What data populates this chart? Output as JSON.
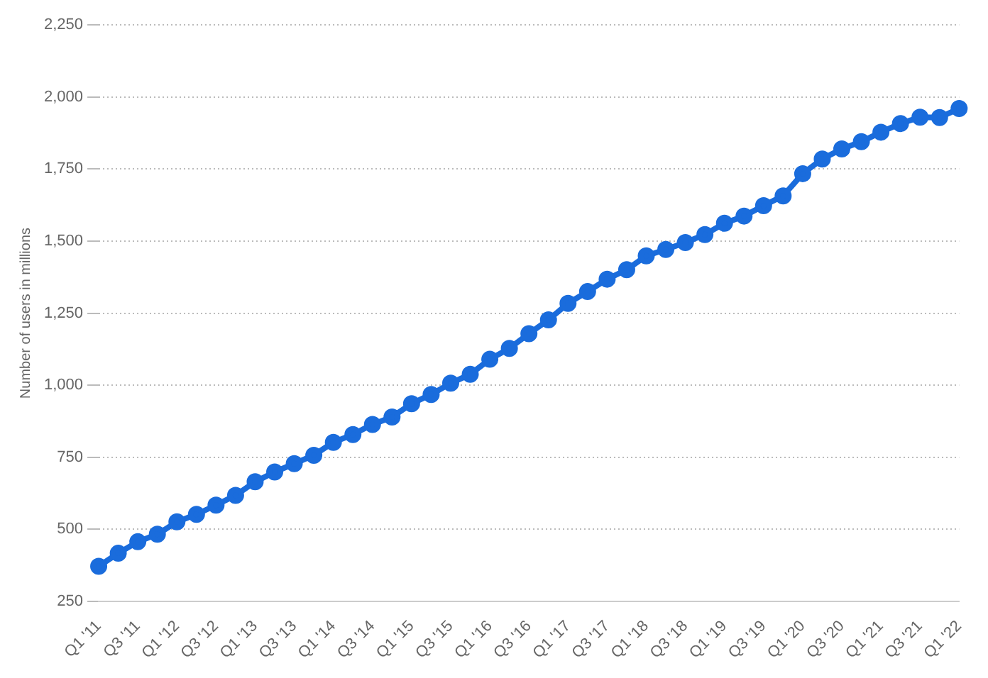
{
  "chart_data": {
    "type": "line",
    "ylabel": "Number of users in millions",
    "categories": [
      "Q1 '11",
      null,
      "Q3 '11",
      null,
      "Q1 '12",
      null,
      "Q3 '12",
      null,
      "Q1 '13",
      null,
      "Q3 '13",
      null,
      "Q1 '14",
      null,
      "Q3 '14",
      null,
      "Q1 '15",
      null,
      "Q3 '15",
      null,
      "Q1 '16",
      null,
      "Q3 '16",
      null,
      "Q1 '17",
      null,
      "Q3 '17",
      null,
      "Q1 '18",
      null,
      "Q3 '18",
      null,
      "Q1 '19",
      null,
      "Q3 '19",
      null,
      "Q1 '20",
      null,
      "Q3 '20",
      null,
      "Q1 '21",
      null,
      "Q3 '21",
      null,
      "Q1 '22"
    ],
    "series": [
      {
        "color": "#1a6cdc",
        "values": [
          372,
          417,
          457,
          483,
          526,
          552,
          584,
          618,
          665,
          699,
          728,
          757,
          802,
          829,
          864,
          890,
          936,
          968,
          1007,
          1038,
          1090,
          1128,
          1179,
          1227,
          1284,
          1325,
          1368,
          1401,
          1449,
          1471,
          1495,
          1523,
          1562,
          1587,
          1623,
          1657,
          1734,
          1785,
          1820,
          1845,
          1878,
          1908,
          1930,
          1929,
          1960
        ]
      }
    ],
    "ylim": [
      250,
      2250
    ],
    "yticks": [
      {
        "value": 250,
        "label": "250"
      },
      {
        "value": 500,
        "label": "500"
      },
      {
        "value": 750,
        "label": "750"
      },
      {
        "value": 1000,
        "label": "1,000"
      },
      {
        "value": 1250,
        "label": "1,250"
      },
      {
        "value": 1500,
        "label": "1,500"
      },
      {
        "value": 1750,
        "label": "1,750"
      },
      {
        "value": 2000,
        "label": "2,000"
      },
      {
        "value": 2250,
        "label": "2,250"
      }
    ],
    "grid": "y",
    "legend": false,
    "marker": "circle",
    "line_style": "solid"
  }
}
